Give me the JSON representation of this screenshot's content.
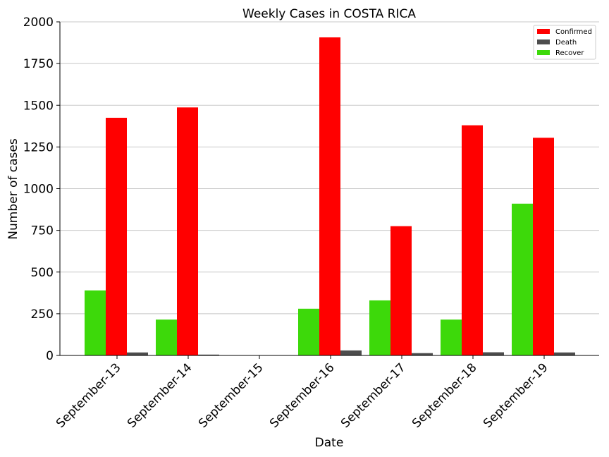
{
  "chart_data": {
    "type": "bar",
    "title": "Weekly Cases in COSTA RICA",
    "xlabel": "Date",
    "ylabel": "Number of cases",
    "ylim": [
      0,
      2000
    ],
    "yticks": [
      0,
      250,
      500,
      750,
      1000,
      1250,
      1500,
      1750,
      2000
    ],
    "grid": "horizontal",
    "legend_position": "top-right",
    "categories": [
      "September-13",
      "September-14",
      "September-15",
      "September-16",
      "September-17",
      "September-18",
      "September-19"
    ],
    "series": [
      {
        "name": "Recover",
        "color": "#3dd90a",
        "values": [
          390,
          215,
          0,
          280,
          330,
          215,
          910
        ]
      },
      {
        "name": "Confirmed",
        "color": "#ff0000",
        "values": [
          1425,
          1487,
          0,
          1907,
          775,
          1380,
          1305
        ]
      },
      {
        "name": "Death",
        "color": "#4d4d4d",
        "values": [
          18,
          5,
          0,
          30,
          14,
          19,
          18
        ]
      }
    ],
    "legend_order": [
      "Confirmed",
      "Death",
      "Recover"
    ]
  }
}
